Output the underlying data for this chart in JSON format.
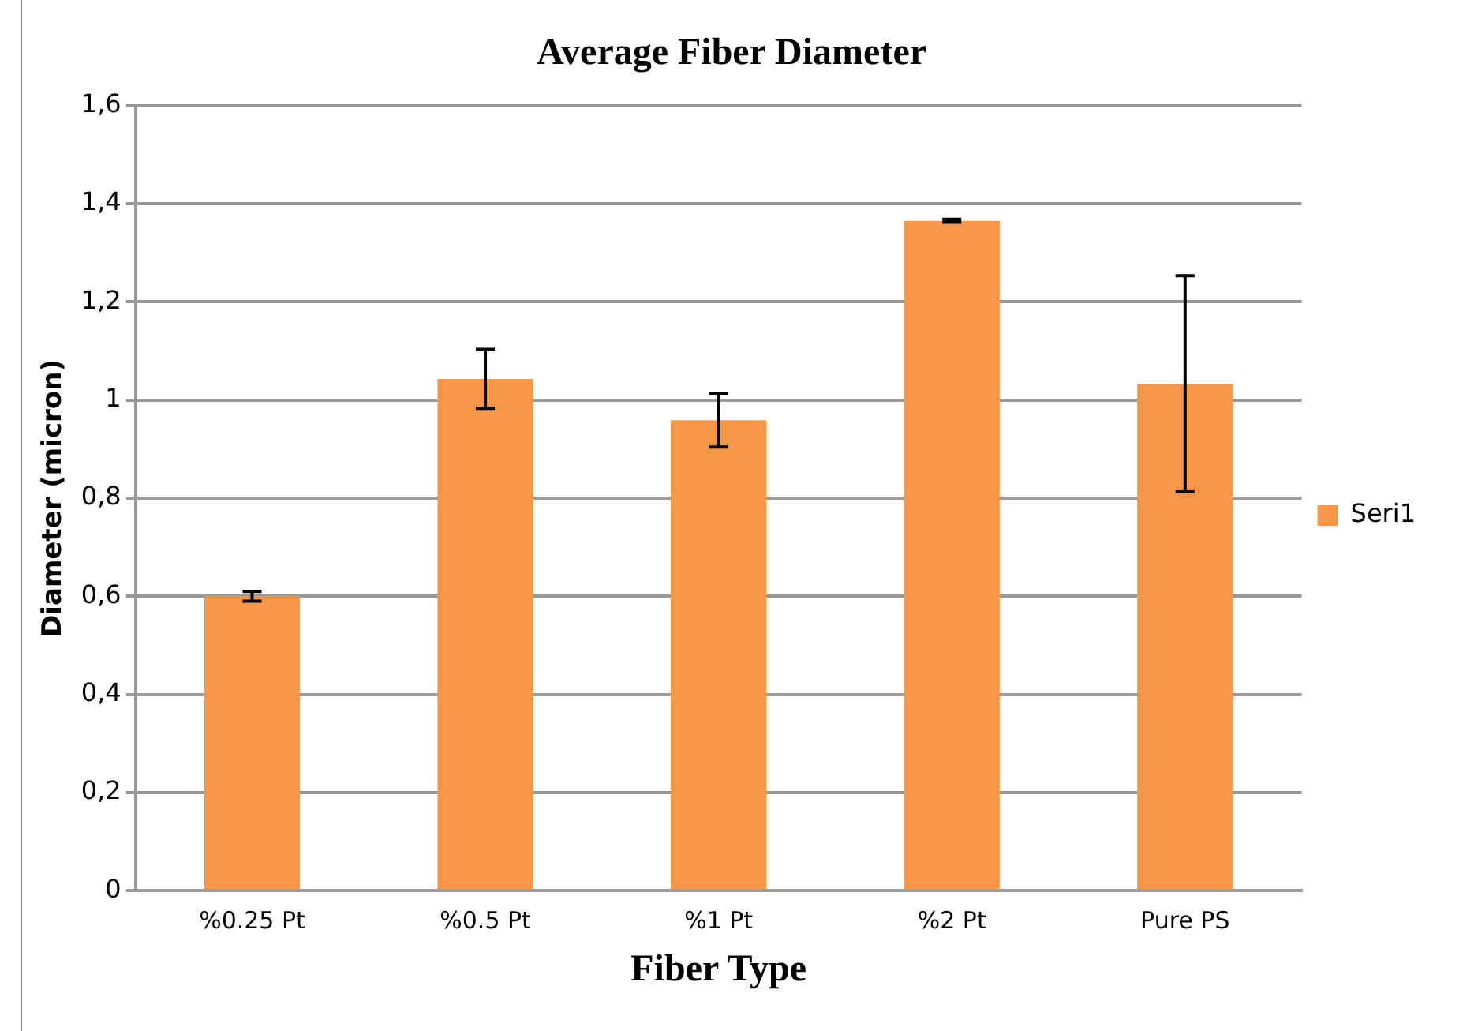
{
  "chart_data": {
    "type": "bar",
    "title": "Average Fiber Diameter",
    "xlabel": "Fiber Type",
    "ylabel": "Diameter (micron)",
    "categories": [
      "%0.25 Pt",
      "%0.5 Pt",
      "%1 Pt",
      "%2 Pt",
      "Pure PS"
    ],
    "series": [
      {
        "name": "Seri1",
        "color": "#f79646",
        "values": [
          0.6,
          1.043,
          0.959,
          1.365,
          1.033
        ],
        "errors": [
          0.01,
          0.06,
          0.055,
          0.003,
          0.22
        ]
      }
    ],
    "ylim": [
      0,
      1.6
    ],
    "yticks": [
      {
        "value": 0,
        "label": "0"
      },
      {
        "value": 0.2,
        "label": "0,2"
      },
      {
        "value": 0.4,
        "label": "0,4"
      },
      {
        "value": 0.6,
        "label": "0,6"
      },
      {
        "value": 0.8,
        "label": "0,8"
      },
      {
        "value": 1,
        "label": "1"
      },
      {
        "value": 1.2,
        "label": "1,2"
      },
      {
        "value": 1.4,
        "label": "1,4"
      },
      {
        "value": 1.6,
        "label": "1,6"
      }
    ],
    "grid": "y",
    "legend": "right"
  }
}
